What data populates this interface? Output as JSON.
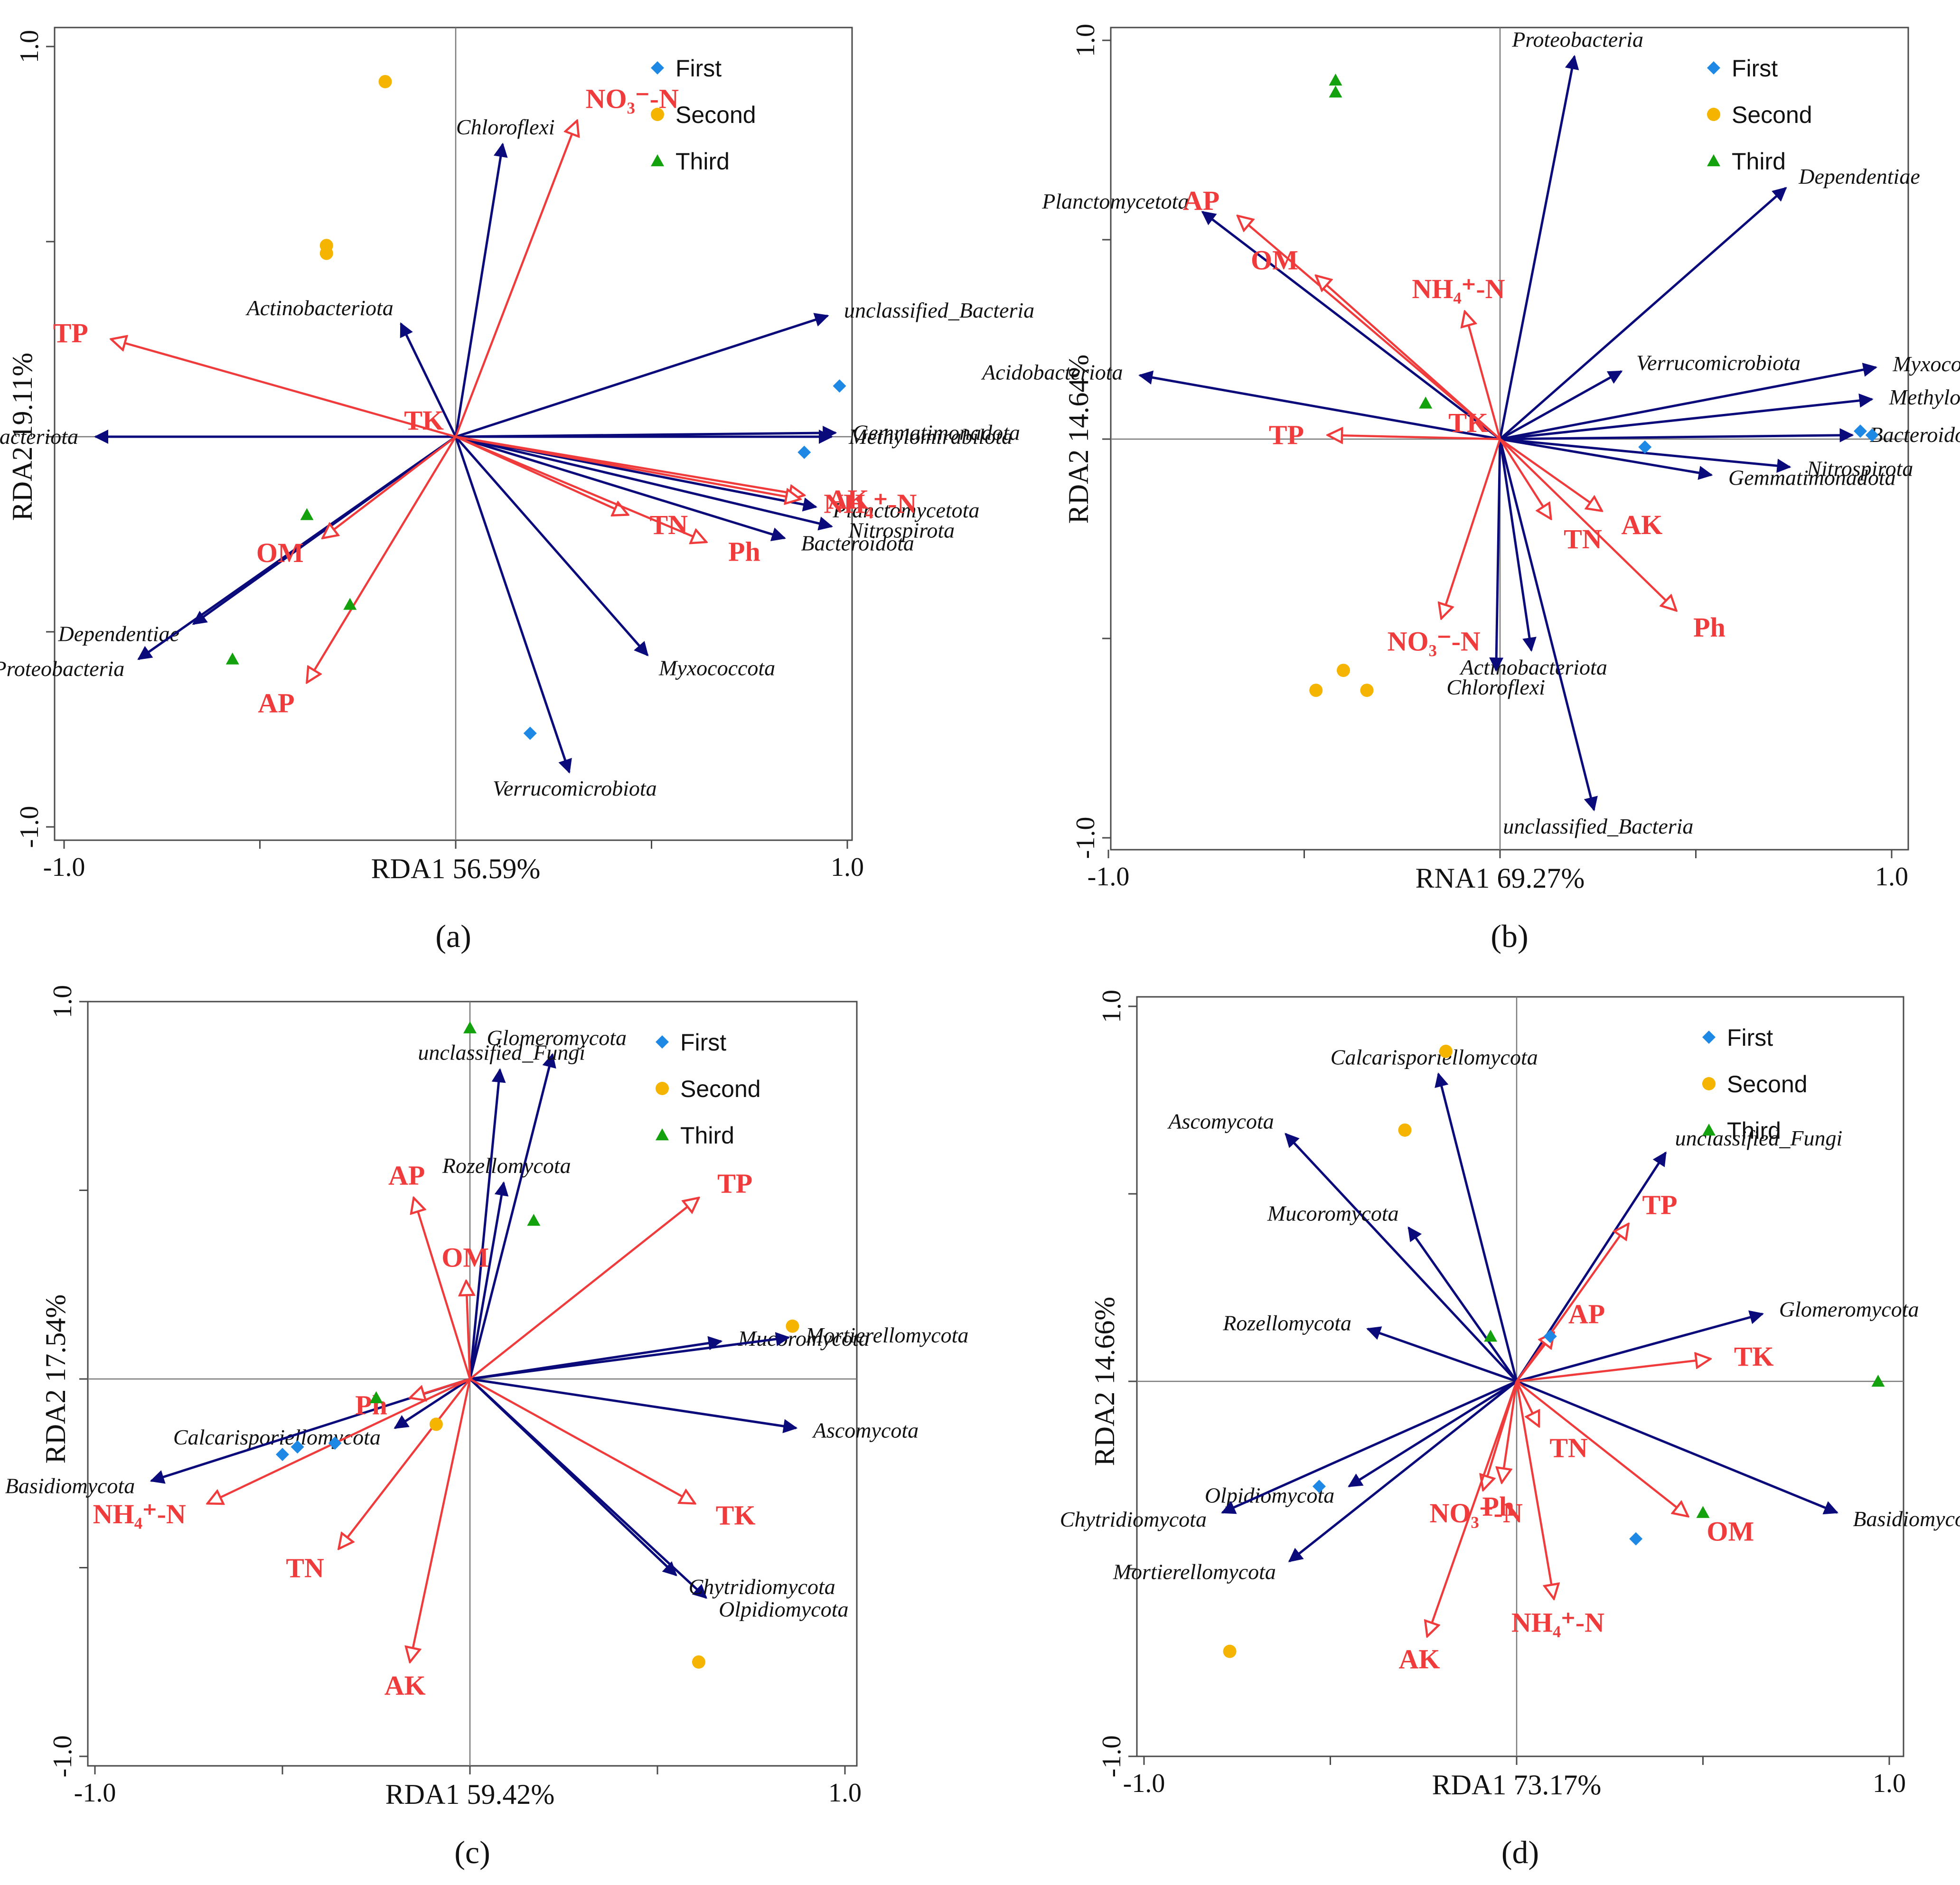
{
  "colors": {
    "species": "#0a0a7a",
    "env": "#ef3b3b",
    "first": "#1e88e5",
    "second": "#f4b400",
    "third": "#13a10e"
  },
  "legend": {
    "first": "First",
    "second": "Second",
    "third": "Third"
  },
  "chart_data": [
    {
      "type": "scatter",
      "panel": "(a)",
      "xlabel": "RDA1 56.59%",
      "ylabel": "RDA2 19.11%",
      "xlim": [
        -1.0,
        1.0
      ],
      "ylim": [
        -1.0,
        1.0
      ],
      "x_ticks": [
        "-1.0",
        "1.0"
      ],
      "y_ticks": [
        "1.0",
        "-1.0"
      ],
      "species": [
        {
          "name": "Chloroflexi",
          "x": 0.12,
          "y": 0.75
        },
        {
          "name": "Actinobacteriota",
          "x": -0.14,
          "y": 0.29
        },
        {
          "name": "unclassified_Bacteria",
          "x": 0.95,
          "y": 0.31
        },
        {
          "name": "Gemmatimonadota",
          "x": 0.97,
          "y": 0.01
        },
        {
          "name": "Methylomirabilota",
          "x": 0.96,
          "y": 0.0
        },
        {
          "name": "Planctomycetota",
          "x": 0.92,
          "y": -0.18
        },
        {
          "name": "Nitrospirota",
          "x": 0.96,
          "y": -0.23
        },
        {
          "name": "Bacteroidota",
          "x": 0.84,
          "y": -0.26
        },
        {
          "name": "Myxococcota",
          "x": 0.49,
          "y": -0.56
        },
        {
          "name": "Verrucomicrobiota",
          "x": 0.29,
          "y": -0.86
        },
        {
          "name": "Acidobacteriota",
          "x": -0.92,
          "y": 0.0
        },
        {
          "name": "Dependentiae",
          "x": -0.67,
          "y": -0.48
        },
        {
          "name": "Proteobacteria",
          "x": -0.81,
          "y": -0.57
        }
      ],
      "env": [
        {
          "name": "NO₃⁻-N",
          "x": 0.31,
          "y": 0.81
        },
        {
          "name": "TP",
          "x": -0.88,
          "y": 0.25
        },
        {
          "name": "TK",
          "x": 0.0,
          "y": 0.0
        },
        {
          "name": "AK",
          "x": 0.89,
          "y": -0.15
        },
        {
          "name": "NH₄⁺-N",
          "x": 0.88,
          "y": -0.16
        },
        {
          "name": "TN",
          "x": 0.44,
          "y": -0.2
        },
        {
          "name": "Ph",
          "x": 0.64,
          "y": -0.27
        },
        {
          "name": "OM",
          "x": -0.34,
          "y": -0.26
        },
        {
          "name": "AP",
          "x": -0.38,
          "y": -0.63
        }
      ],
      "samples": {
        "First": [
          [
            0.98,
            0.13
          ],
          [
            0.89,
            -0.04
          ],
          [
            0.19,
            -0.76
          ]
        ],
        "Second": [
          [
            -0.18,
            0.91
          ],
          [
            -0.33,
            0.49
          ],
          [
            -0.33,
            0.47
          ]
        ],
        "Third": [
          [
            -0.38,
            -0.2
          ],
          [
            -0.27,
            -0.43
          ],
          [
            -0.57,
            -0.57
          ]
        ]
      }
    },
    {
      "type": "scatter",
      "panel": "(b)",
      "xlabel": "RNA1 69.27%",
      "ylabel": "RDA2 14.64%",
      "xlim": [
        -1.0,
        1.0
      ],
      "ylim": [
        -1.0,
        1.0
      ],
      "x_ticks": [
        "-1.0",
        "1.0"
      ],
      "y_ticks": [
        "1.0",
        "-1.0"
      ],
      "species": [
        {
          "name": "Proteobacteria",
          "x": 0.19,
          "y": 0.96
        },
        {
          "name": "Dependentiae",
          "x": 0.73,
          "y": 0.63
        },
        {
          "name": "Planctomycetota",
          "x": -0.76,
          "y": 0.57
        },
        {
          "name": "Acidobacteriota",
          "x": -0.92,
          "y": 0.16
        },
        {
          "name": "Verrucomicrobiota",
          "x": 0.31,
          "y": 0.17
        },
        {
          "name": "Myxococcota",
          "x": 0.96,
          "y": 0.18
        },
        {
          "name": "Methylomirabilota",
          "x": 0.95,
          "y": 0.1
        },
        {
          "name": "Bacteroidota",
          "x": 0.9,
          "y": 0.01
        },
        {
          "name": "Nitrospirota",
          "x": 0.74,
          "y": -0.07
        },
        {
          "name": "Gemmatimonadota",
          "x": 0.54,
          "y": -0.09
        },
        {
          "name": "Actinobacteriota",
          "x": 0.08,
          "y": -0.53
        },
        {
          "name": "Chloroflexi",
          "x": -0.01,
          "y": -0.58
        },
        {
          "name": "unclassified_Bacteria",
          "x": 0.24,
          "y": -0.93
        }
      ],
      "env": [
        {
          "name": "AP",
          "x": -0.67,
          "y": 0.56
        },
        {
          "name": "OM",
          "x": -0.47,
          "y": 0.41
        },
        {
          "name": "NH₄⁺-N",
          "x": -0.09,
          "y": 0.32
        },
        {
          "name": "TP",
          "x": -0.44,
          "y": 0.01
        },
        {
          "name": "TK",
          "x": 0.0,
          "y": 0.0
        },
        {
          "name": "AK",
          "x": 0.26,
          "y": -0.18
        },
        {
          "name": "TN",
          "x": 0.13,
          "y": -0.2
        },
        {
          "name": "Ph",
          "x": 0.45,
          "y": -0.43
        },
        {
          "name": "NO₃⁻-N",
          "x": -0.15,
          "y": -0.45
        }
      ],
      "samples": {
        "First": [
          [
            0.92,
            0.02
          ],
          [
            0.95,
            0.01
          ],
          [
            0.37,
            -0.02
          ]
        ],
        "Second": [
          [
            -0.47,
            -0.63
          ],
          [
            -0.4,
            -0.58
          ],
          [
            -0.34,
            -0.63
          ]
        ],
        "Third": [
          [
            -0.42,
            0.9
          ],
          [
            -0.42,
            0.87
          ],
          [
            -0.19,
            0.09
          ]
        ]
      }
    },
    {
      "type": "scatter",
      "panel": "(c)",
      "xlabel": "RDA1 59.42%",
      "ylabel": "RDA2 17.54%",
      "xlim": [
        -1.0,
        1.0
      ],
      "ylim": [
        -1.0,
        1.0
      ],
      "x_ticks": [
        "-1.0",
        "1.0"
      ],
      "y_ticks": [
        "1.0",
        "-1.0"
      ],
      "species": [
        {
          "name": "Glomeromycota",
          "x": 0.22,
          "y": 0.86
        },
        {
          "name": "unclassified_Fungi",
          "x": 0.08,
          "y": 0.82
        },
        {
          "name": "Rozellomycota",
          "x": 0.09,
          "y": 0.52
        },
        {
          "name": "Mucoromycota",
          "x": 0.67,
          "y": 0.1
        },
        {
          "name": "Mortierellomycota",
          "x": 0.85,
          "y": 0.11
        },
        {
          "name": "Ascomycota",
          "x": 0.87,
          "y": -0.13
        },
        {
          "name": "Olpidiomycota",
          "x": 0.63,
          "y": -0.58
        },
        {
          "name": "Chytridiomycota",
          "x": 0.55,
          "y": -0.52
        },
        {
          "name": "Calcarisporiellomycota",
          "x": -0.2,
          "y": -0.13
        },
        {
          "name": "Basidiomycota",
          "x": -0.85,
          "y": -0.27
        }
      ],
      "env": [
        {
          "name": "TP",
          "x": 0.61,
          "y": 0.48
        },
        {
          "name": "AP",
          "x": -0.15,
          "y": 0.48
        },
        {
          "name": "OM",
          "x": -0.01,
          "y": 0.26
        },
        {
          "name": "Ph",
          "x": -0.16,
          "y": -0.05
        },
        {
          "name": "NH₄⁺-N",
          "x": -0.7,
          "y": -0.33
        },
        {
          "name": "TN",
          "x": -0.35,
          "y": -0.45
        },
        {
          "name": "AK",
          "x": -0.16,
          "y": -0.75
        },
        {
          "name": "TK",
          "x": 0.6,
          "y": -0.33
        }
      ],
      "samples": {
        "First": [
          [
            -0.5,
            -0.2
          ],
          [
            -0.46,
            -0.18
          ],
          [
            -0.36,
            -0.17
          ]
        ],
        "Second": [
          [
            0.86,
            0.14
          ],
          [
            -0.09,
            -0.12
          ],
          [
            0.61,
            -0.75
          ]
        ],
        "Third": [
          [
            0.0,
            0.93
          ],
          [
            0.17,
            0.42
          ],
          [
            -0.25,
            -0.05
          ]
        ]
      }
    },
    {
      "type": "scatter",
      "panel": "(d)",
      "xlabel": "RDA1 73.17%",
      "ylabel": "RDA2 14.66%",
      "xlim": [
        -1.0,
        1.0
      ],
      "ylim": [
        -1.0,
        1.0
      ],
      "x_ticks": [
        "-1.0",
        "1.0"
      ],
      "y_ticks": [
        "1.0",
        "-1.0"
      ],
      "species": [
        {
          "name": "Calcarisporiellomycota",
          "x": -0.21,
          "y": 0.82
        },
        {
          "name": "Ascomycota",
          "x": -0.62,
          "y": 0.66
        },
        {
          "name": "unclassified_Fungi",
          "x": 0.4,
          "y": 0.61
        },
        {
          "name": "Mucoromycota",
          "x": -0.29,
          "y": 0.41
        },
        {
          "name": "Glomeromycota",
          "x": 0.66,
          "y": 0.18
        },
        {
          "name": "Rozellomycota",
          "x": -0.4,
          "y": 0.14
        },
        {
          "name": "Basidiomycota",
          "x": 0.86,
          "y": -0.35
        },
        {
          "name": "Olpidiomycota",
          "x": -0.45,
          "y": -0.28
        },
        {
          "name": "Chytridiomycota",
          "x": -0.79,
          "y": -0.35
        },
        {
          "name": "Mortierellomycota",
          "x": -0.61,
          "y": -0.48
        }
      ],
      "env": [
        {
          "name": "TP",
          "x": 0.3,
          "y": 0.42
        },
        {
          "name": "AP",
          "x": 0.1,
          "y": 0.13
        },
        {
          "name": "TK",
          "x": 0.52,
          "y": 0.06
        },
        {
          "name": "TN",
          "x": 0.06,
          "y": -0.12
        },
        {
          "name": "OM",
          "x": 0.46,
          "y": -0.36
        },
        {
          "name": "NH₄⁺-N",
          "x": 0.1,
          "y": -0.58
        },
        {
          "name": "Ph",
          "x": -0.04,
          "y": -0.27
        },
        {
          "name": "NO₃⁻-N",
          "x": -0.09,
          "y": -0.29
        },
        {
          "name": "AK",
          "x": -0.24,
          "y": -0.68
        }
      ],
      "samples": {
        "First": [
          [
            -0.53,
            -0.28
          ],
          [
            0.09,
            0.12
          ],
          [
            0.32,
            -0.42
          ]
        ],
        "Second": [
          [
            -0.19,
            0.88
          ],
          [
            -0.3,
            0.67
          ],
          [
            -0.77,
            -0.72
          ]
        ],
        "Third": [
          [
            -0.07,
            0.12
          ],
          [
            0.97,
            0.0
          ],
          [
            0.5,
            -0.35
          ]
        ]
      }
    }
  ]
}
